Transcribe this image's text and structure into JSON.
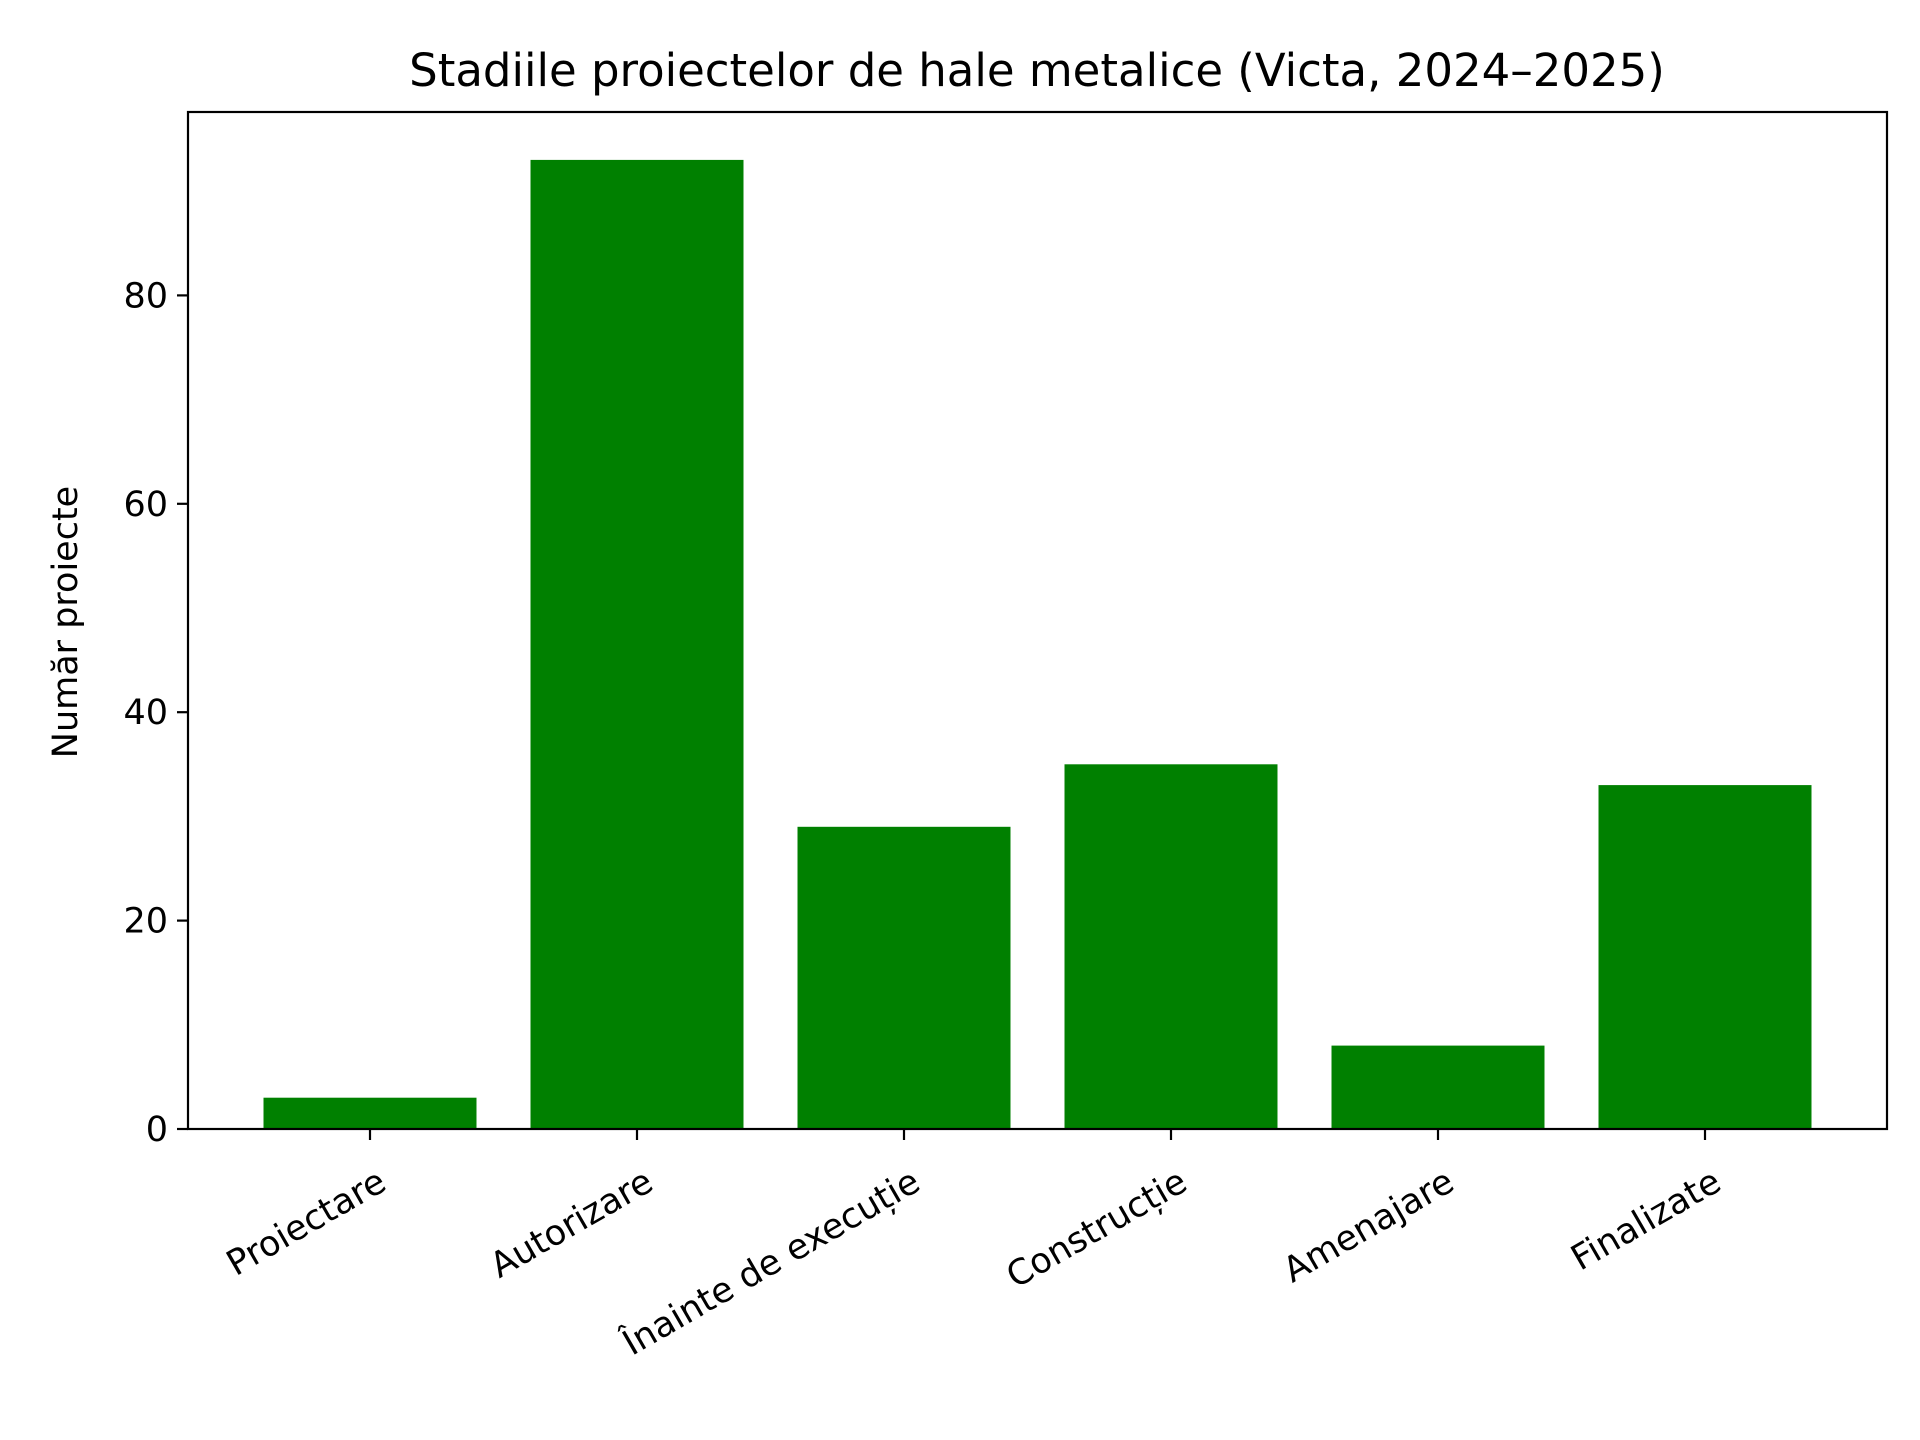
{
  "chart_data": {
    "type": "bar",
    "title": "Stadiile proiectelor de hale metalice (Victa, 2024–2025)",
    "xlabel": "",
    "ylabel": "Număr proiecte",
    "categories": [
      "Proiectare",
      "Autorizare",
      "Înainte de execuție",
      "Construcție",
      "Amenajare",
      "Finalizate"
    ],
    "values": [
      3,
      93,
      29,
      35,
      8,
      33
    ],
    "ylim": [
      0,
      97.6
    ],
    "yticks": [
      0,
      20,
      40,
      60,
      80
    ],
    "x_tick_rotation_deg": 30,
    "grid": false,
    "legend": "none",
    "colors": {
      "bar": "#008000",
      "axis": "#000000",
      "background": "#ffffff"
    }
  }
}
